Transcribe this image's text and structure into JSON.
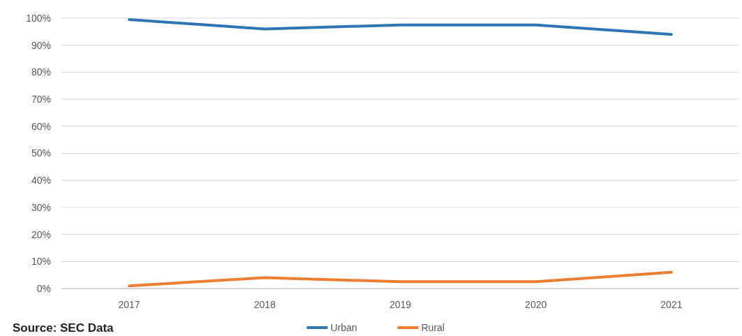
{
  "chart_data": {
    "type": "line",
    "categories": [
      "2017",
      "2018",
      "2019",
      "2020",
      "2021"
    ],
    "series": [
      {
        "name": "Urban",
        "color": "#2e75b6",
        "values": [
          99.5,
          96,
          97.5,
          97.5,
          94
        ]
      },
      {
        "name": "Rural",
        "color": "#ed7d31",
        "values": [
          1,
          4,
          2.5,
          2.5,
          6
        ]
      }
    ],
    "ylim": [
      0,
      100
    ],
    "yticks": [
      {
        "value": 0,
        "label": "0%"
      },
      {
        "value": 10,
        "label": "10%"
      },
      {
        "value": 20,
        "label": "20%"
      },
      {
        "value": 30,
        "label": "30%"
      },
      {
        "value": 40,
        "label": "40%"
      },
      {
        "value": 50,
        "label": "50%"
      },
      {
        "value": 60,
        "label": "60%"
      },
      {
        "value": 70,
        "label": "70%"
      },
      {
        "value": 80,
        "label": "80%"
      },
      {
        "value": 90,
        "label": "90%"
      },
      {
        "value": 100,
        "label": "100%"
      }
    ],
    "grid": "y",
    "legend": "bottom",
    "marker": "none",
    "line_style": "solid",
    "annotations": [
      "Source: SEC Data"
    ]
  }
}
